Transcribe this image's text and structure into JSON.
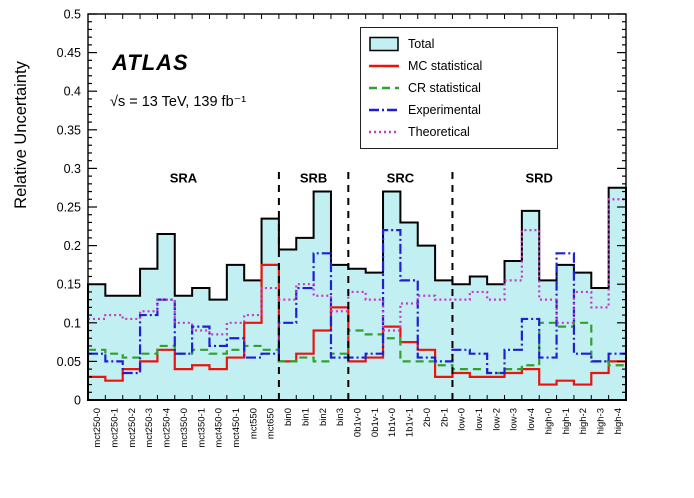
{
  "chart_data": {
    "type": "line",
    "title": "",
    "ylabel": "Relative Uncertainty",
    "xlabel": "",
    "ylim": [
      0,
      0.5
    ],
    "y_tick_step": 0.05,
    "grid": false,
    "legend_position": "top-right",
    "annotations": {
      "experiment": "ATLAS",
      "lumi": "√s = 13 TeV, 139 fb⁻¹"
    },
    "categories": [
      "mct250-0",
      "mct250-1",
      "mct250-2",
      "mct250-3",
      "mct250-4",
      "mct350-0",
      "mct350-1",
      "mct450-0",
      "mct450-1",
      "mct550",
      "mct650",
      "bin0",
      "bin1",
      "bin2",
      "bin3",
      "0b1v-0",
      "0b1v-1",
      "1b1v-0",
      "1b1v-1",
      "2b-0",
      "2b-1",
      "low-0",
      "low-1",
      "low-2",
      "low-3",
      "low-4",
      "high-0",
      "high-1",
      "high-2",
      "high-3",
      "high-4"
    ],
    "regions": [
      {
        "label": "SRA",
        "start": 0,
        "end": 11
      },
      {
        "label": "SRB",
        "start": 11,
        "end": 15
      },
      {
        "label": "SRC",
        "start": 15,
        "end": 21
      },
      {
        "label": "SRD",
        "start": 21,
        "end": 31
      }
    ],
    "separators_after_bin": [
      11,
      15,
      21
    ],
    "series": [
      {
        "name": "Total",
        "style": "filled",
        "color": "#000000",
        "fill": "#c2f0f2",
        "values": [
          0.15,
          0.135,
          0.135,
          0.17,
          0.215,
          0.135,
          0.145,
          0.13,
          0.175,
          0.155,
          0.235,
          0.195,
          0.21,
          0.27,
          0.175,
          0.17,
          0.165,
          0.27,
          0.23,
          0.2,
          0.155,
          0.15,
          0.16,
          0.15,
          0.18,
          0.245,
          0.155,
          0.175,
          0.165,
          0.145,
          0.275
        ]
      },
      {
        "name": "MC statistical",
        "style": "solid",
        "color": "#e8150f",
        "values": [
          0.03,
          0.025,
          0.04,
          0.05,
          0.065,
          0.04,
          0.045,
          0.04,
          0.055,
          0.1,
          0.175,
          0.05,
          0.06,
          0.09,
          0.12,
          0.05,
          0.055,
          0.095,
          0.075,
          0.065,
          0.03,
          0.035,
          0.03,
          0.03,
          0.035,
          0.04,
          0.02,
          0.025,
          0.02,
          0.035,
          0.05
        ]
      },
      {
        "name": "CR statistical",
        "style": "dashed",
        "color": "#33a02c",
        "values": [
          0.065,
          0.06,
          0.055,
          0.06,
          0.07,
          0.06,
          0.065,
          0.06,
          0.065,
          0.07,
          0.065,
          0.05,
          0.055,
          0.05,
          0.06,
          0.09,
          0.085,
          0.08,
          0.05,
          0.05,
          0.045,
          0.04,
          0.04,
          0.035,
          0.04,
          0.045,
          0.1,
          0.095,
          0.1,
          0.05,
          0.045
        ]
      },
      {
        "name": "Experimental",
        "style": "dashdot",
        "color": "#1f1fd1",
        "values": [
          0.06,
          0.05,
          0.035,
          0.11,
          0.13,
          0.06,
          0.095,
          0.07,
          0.08,
          0.055,
          0.06,
          0.1,
          0.145,
          0.19,
          0.055,
          0.055,
          0.06,
          0.22,
          0.155,
          0.055,
          0.05,
          0.065,
          0.06,
          0.035,
          0.065,
          0.105,
          0.055,
          0.19,
          0.06,
          0.05,
          0.06
        ]
      },
      {
        "name": "Theoretical",
        "style": "dotted",
        "color": "#c43bc4",
        "values": [
          0.105,
          0.11,
          0.105,
          0.115,
          0.13,
          0.1,
          0.09,
          0.085,
          0.1,
          0.11,
          0.145,
          0.13,
          0.15,
          0.135,
          0.115,
          0.14,
          0.13,
          0.09,
          0.125,
          0.135,
          0.13,
          0.13,
          0.14,
          0.13,
          0.155,
          0.22,
          0.13,
          0.1,
          0.14,
          0.12,
          0.26
        ]
      }
    ]
  }
}
